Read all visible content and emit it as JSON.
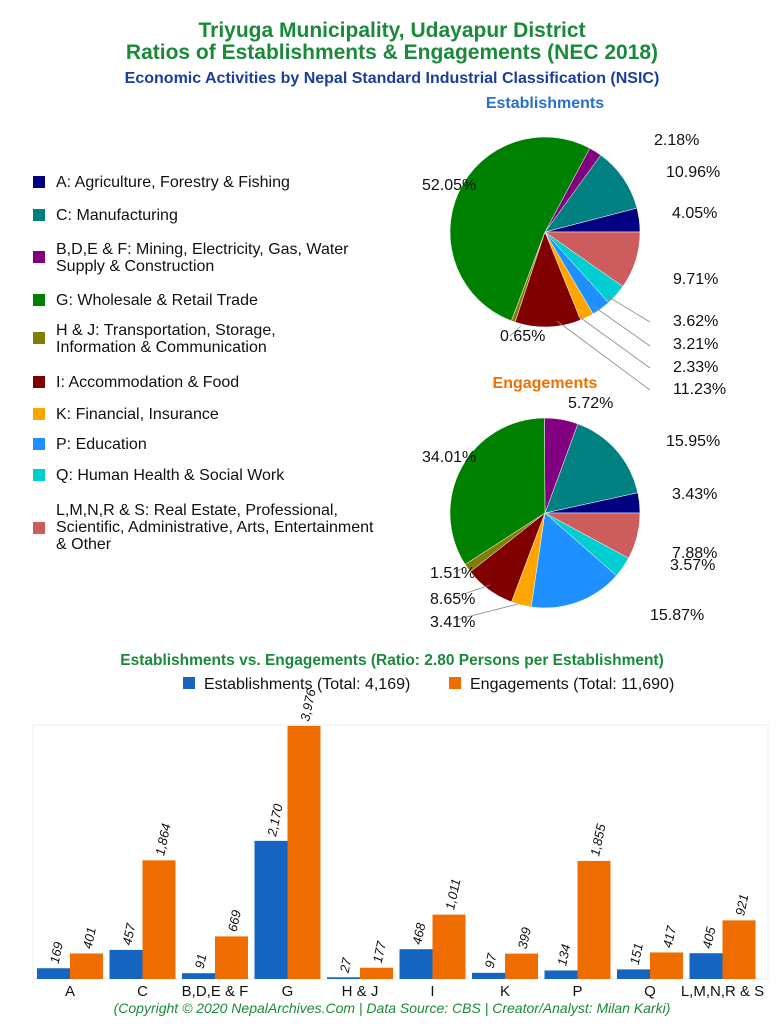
{
  "title_line1": "Triyuga Municipality, Udayapur District",
  "title_line2": "Ratios of Establishments & Engagements (NEC 2018)",
  "subtitle": "Economic Activities by Nepal Standard Industrial Classification (NSIC)",
  "legend": [
    {
      "label": "A: Agriculture, Forestry & Fishing",
      "color": "#000080"
    },
    {
      "label": "C: Manufacturing",
      "color": "#008080"
    },
    {
      "label": "B,D,E & F: Mining, Electricity, Gas, Water Supply & Construction",
      "color": "#800080"
    },
    {
      "label": "G: Wholesale & Retail Trade",
      "color": "#008000"
    },
    {
      "label": "H & J: Transportation, Storage, Information & Communication",
      "color": "#808000"
    },
    {
      "label": "I: Accommodation & Food",
      "color": "#800000"
    },
    {
      "label": "K: Financial, Insurance",
      "color": "#FFA500"
    },
    {
      "label": "P: Education",
      "color": "#1E90FF"
    },
    {
      "label": "Q: Human Health & Social Work",
      "color": "#00CED1"
    },
    {
      "label": "L,M,N,R & S: Real Estate, Professional, Scientific, Administrative, Arts, Entertainment & Other",
      "color": "#CD5C5C"
    }
  ],
  "chart_data": [
    {
      "type": "pie",
      "title": "Establishments",
      "title_color": "#2a6fc9",
      "slices": [
        "A",
        "C",
        "B,D,E & F",
        "G",
        "H & J",
        "I",
        "K",
        "P",
        "Q",
        "L,M,N,R & S"
      ],
      "values": [
        4.05,
        10.96,
        2.18,
        52.05,
        0.65,
        11.23,
        2.33,
        3.21,
        3.62,
        9.71
      ],
      "labels": [
        "4.05%",
        "10.96%",
        "2.18%",
        "52.05%",
        "0.65%",
        "11.23%",
        "2.33%",
        "3.21%",
        "3.62%",
        "9.71%"
      ]
    },
    {
      "type": "pie",
      "title": "Engagements",
      "title_color": "#ee7000",
      "slices": [
        "A",
        "C",
        "B,D,E & F",
        "G",
        "H & J",
        "I",
        "K",
        "P",
        "Q",
        "L,M,N,R & S"
      ],
      "values": [
        3.43,
        15.95,
        5.72,
        34.01,
        1.51,
        8.65,
        3.41,
        15.87,
        3.57,
        7.88
      ],
      "labels": [
        "3.43%",
        "15.95%",
        "5.72%",
        "34.01%",
        "1.51%",
        "8.65%",
        "3.41%",
        "15.87%",
        "3.57%",
        "7.88%"
      ]
    },
    {
      "type": "bar",
      "title": "Establishments vs. Engagements (Ratio: 2.80 Persons per Establishment)",
      "categories": [
        "A",
        "C",
        "B,D,E & F",
        "G",
        "H & J",
        "I",
        "K",
        "P",
        "Q",
        "L,M,N,R & S"
      ],
      "series": [
        {
          "name": "Establishments (Total: 4,169)",
          "color": "#1565c0",
          "values": [
            169,
            457,
            91,
            2170,
            27,
            468,
            97,
            134,
            151,
            405
          ],
          "labels": [
            "169",
            "457",
            "91",
            "2,170",
            "27",
            "468",
            "97",
            "134",
            "151",
            "405"
          ]
        },
        {
          "name": "Engagements (Total: 11,690)",
          "color": "#ef6c00",
          "values": [
            401,
            1864,
            669,
            3976,
            177,
            1011,
            399,
            1855,
            417,
            921
          ],
          "labels": [
            "401",
            "1,864",
            "669",
            "3,976",
            "177",
            "1,011",
            "399",
            "1,855",
            "417",
            "921"
          ]
        }
      ],
      "ylim": [
        0,
        3990
      ],
      "grid": false
    }
  ],
  "footer": "(Copyright © 2020 NepalArchives.Com | Data Source: CBS | Creator/Analyst: Milan Karki)"
}
